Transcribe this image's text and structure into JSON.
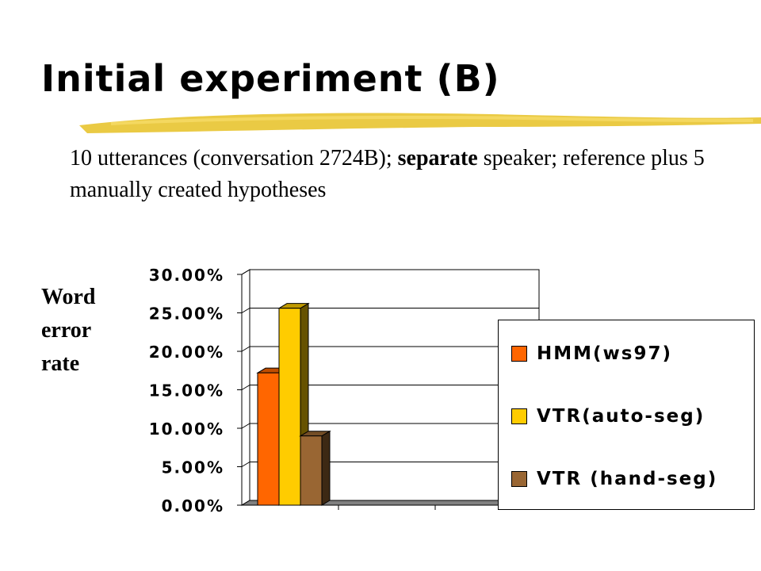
{
  "slide": {
    "title": "Initial experiment (B)",
    "subtitle_pre": "10 utterances (conversation 2724B); ",
    "subtitle_bold": "separate",
    "subtitle_post": " speaker; reference plus 5 manually created hypotheses"
  },
  "chart_data": {
    "type": "bar",
    "ylabel": "Word error rate",
    "yticks": [
      "0.00%",
      "5.00%",
      "10.00%",
      "15.00%",
      "20.00%",
      "25.00%",
      "30.00%"
    ],
    "ylim": [
      0,
      30
    ],
    "grid": true,
    "legend_position": "right",
    "series": [
      {
        "name": "HMM(ws97)",
        "value": 17.2,
        "color": "#ff6600"
      },
      {
        "name": "VTR(auto-seg)",
        "value": 25.6,
        "color": "#ffcc00"
      },
      {
        "name": "VTR (hand-seg)",
        "value": 9.0,
        "color": "#996633"
      }
    ]
  }
}
